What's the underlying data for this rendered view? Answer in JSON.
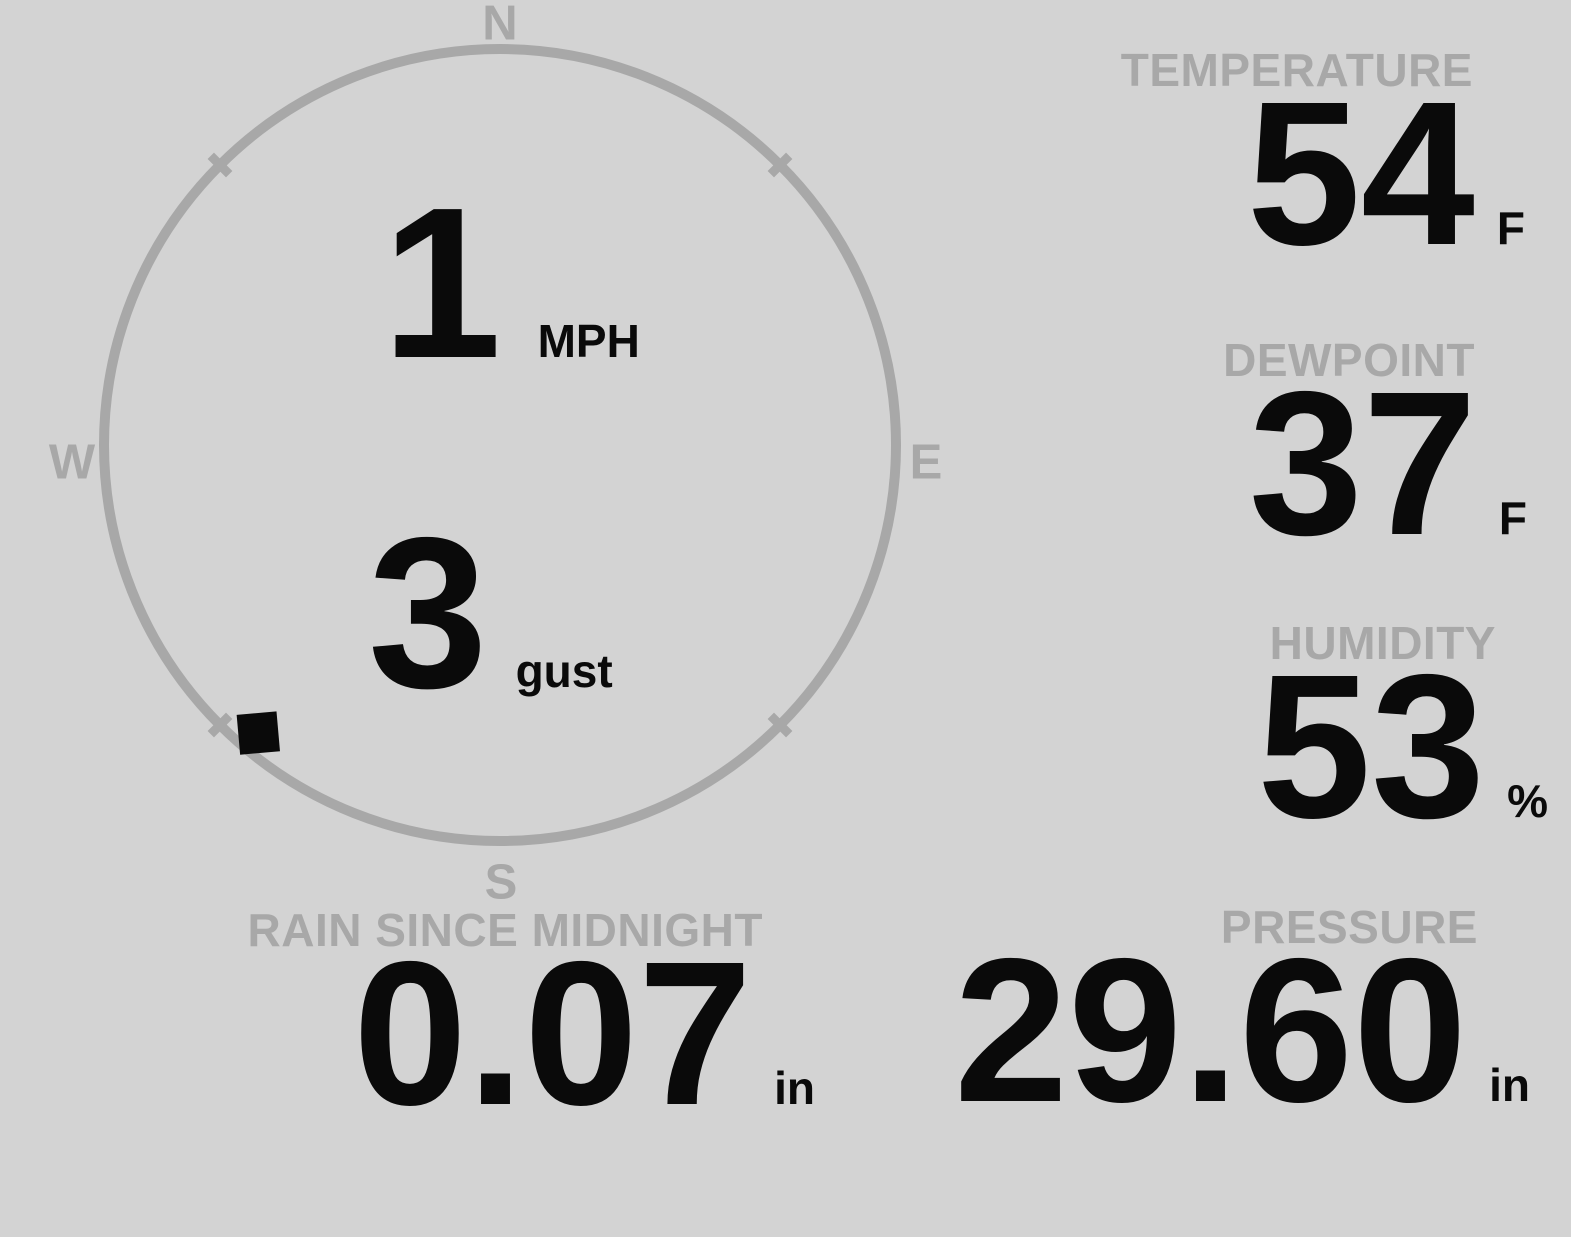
{
  "colors": {
    "background": "#d3d3d3",
    "gauge_gray": "#a8a8a8",
    "text_black": "#0a0a0a"
  },
  "wind": {
    "speed": "1",
    "speed_unit": "MPH",
    "gust": "3",
    "gust_label": "gust",
    "direction_degrees": 220,
    "cardinals": {
      "n": "N",
      "e": "E",
      "s": "S",
      "w": "W"
    }
  },
  "metrics": [
    {
      "id": "temperature",
      "label": "TEMPERATURE",
      "value": "54",
      "unit": "F"
    },
    {
      "id": "dewpoint",
      "label": "DEWPOINT",
      "value": "37",
      "unit": "F"
    },
    {
      "id": "humidity",
      "label": "HUMIDITY",
      "value": "53",
      "unit": "%"
    },
    {
      "id": "rain",
      "label": "RAIN SINCE MIDNIGHT",
      "value": "0.07",
      "unit": "in"
    },
    {
      "id": "pressure",
      "label": "PRESSURE",
      "value": "29.60",
      "unit": "in"
    }
  ]
}
